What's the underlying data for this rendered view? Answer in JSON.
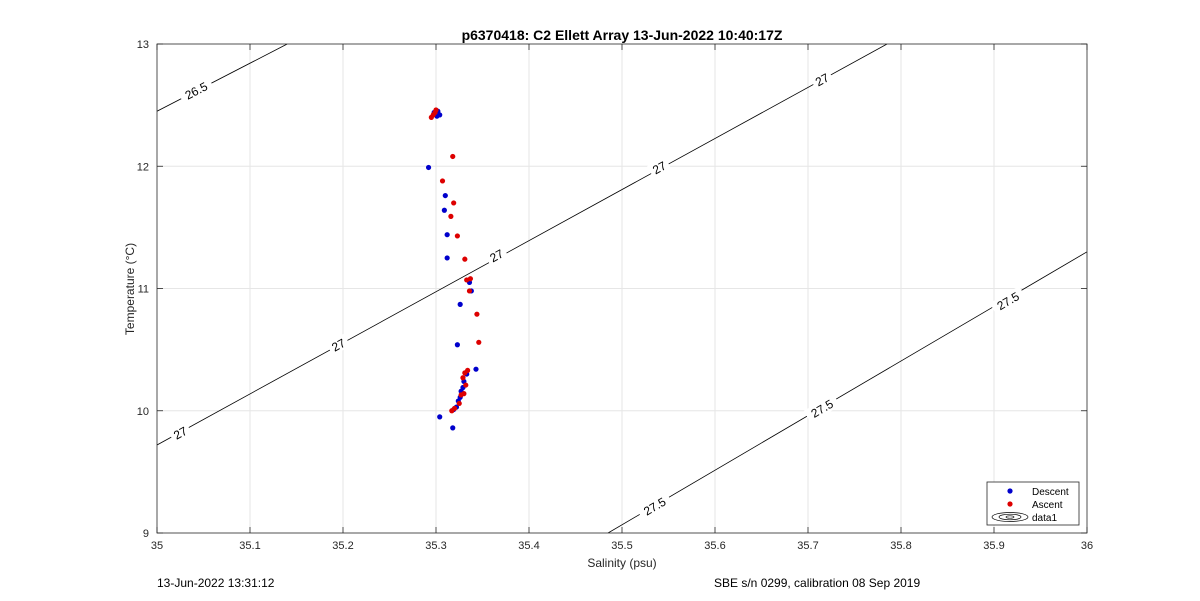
{
  "chart_data": {
    "type": "scatter",
    "title": "p6370418: C2 Ellett Array 13-Jun-2022 10:40:17Z",
    "xlabel": "Salinity (psu)",
    "ylabel": "Temperature (°C)",
    "xlim": [
      35,
      36
    ],
    "ylim": [
      9,
      13
    ],
    "x_ticks": [
      "35",
      "35.1",
      "35.2",
      "35.3",
      "35.4",
      "35.5",
      "35.6",
      "35.7",
      "35.8",
      "35.9",
      "36"
    ],
    "y_ticks": [
      "9",
      "10",
      "11",
      "12",
      "13"
    ],
    "grid": true,
    "legend_position": "bottom-right",
    "legend": [
      "Descent",
      "Ascent",
      "data1"
    ],
    "series": [
      {
        "name": "Descent",
        "color": "#0000cc",
        "points": [
          [
            35.302,
            12.45
          ],
          [
            35.304,
            12.42
          ],
          [
            35.298,
            12.44
          ],
          [
            35.301,
            12.41
          ],
          [
            35.292,
            11.99
          ],
          [
            35.31,
            11.76
          ],
          [
            35.309,
            11.64
          ],
          [
            35.312,
            11.44
          ],
          [
            35.312,
            11.25
          ],
          [
            35.336,
            11.05
          ],
          [
            35.338,
            10.98
          ],
          [
            35.326,
            10.87
          ],
          [
            35.323,
            10.54
          ],
          [
            35.343,
            10.34
          ],
          [
            35.333,
            10.3
          ],
          [
            35.33,
            10.24
          ],
          [
            35.329,
            10.19
          ],
          [
            35.327,
            10.16
          ],
          [
            35.326,
            10.11
          ],
          [
            35.324,
            10.08
          ],
          [
            35.322,
            10.03
          ],
          [
            35.319,
            10.01
          ],
          [
            35.304,
            9.95
          ],
          [
            35.318,
            9.86
          ]
        ]
      },
      {
        "name": "Ascent",
        "color": "#dd0000",
        "points": [
          [
            35.295,
            12.4
          ],
          [
            35.297,
            12.42
          ],
          [
            35.299,
            12.44
          ],
          [
            35.3,
            12.46
          ],
          [
            35.318,
            12.08
          ],
          [
            35.307,
            11.88
          ],
          [
            35.319,
            11.7
          ],
          [
            35.316,
            11.59
          ],
          [
            35.323,
            11.43
          ],
          [
            35.331,
            11.24
          ],
          [
            35.337,
            11.08
          ],
          [
            35.333,
            11.07
          ],
          [
            35.336,
            10.98
          ],
          [
            35.344,
            10.79
          ],
          [
            35.346,
            10.56
          ],
          [
            35.334,
            10.33
          ],
          [
            35.331,
            10.31
          ],
          [
            35.329,
            10.27
          ],
          [
            35.332,
            10.21
          ],
          [
            35.33,
            10.14
          ],
          [
            35.327,
            10.13
          ],
          [
            35.325,
            10.06
          ],
          [
            35.32,
            10.02
          ],
          [
            35.317,
            10.0
          ]
        ]
      }
    ],
    "contours": [
      {
        "level": "26.5",
        "points": [
          [
            35.0,
            12.45
          ],
          [
            35.14,
            13.0
          ]
        ],
        "label_at": [
          [
            35.042,
            12.62
          ]
        ]
      },
      {
        "level": "27",
        "points": [
          [
            35.0,
            9.72
          ],
          [
            35.785,
            13.0
          ]
        ],
        "label_at": [
          [
            35.025,
            9.82
          ],
          [
            35.195,
            10.54
          ],
          [
            35.365,
            11.27
          ],
          [
            35.54,
            11.99
          ],
          [
            35.715,
            12.71
          ]
        ]
      },
      {
        "level": "27.5",
        "points": [
          [
            35.485,
            9.0
          ],
          [
            36.0,
            11.3
          ]
        ],
        "label_at": [
          [
            35.535,
            9.22
          ],
          [
            35.715,
            10.02
          ],
          [
            35.915,
            10.9
          ]
        ]
      }
    ]
  },
  "footer": {
    "timestamp": "13-Jun-2022 13:31:12",
    "calibration": "SBE s/n 0299, calibration 08 Sep 2019"
  }
}
